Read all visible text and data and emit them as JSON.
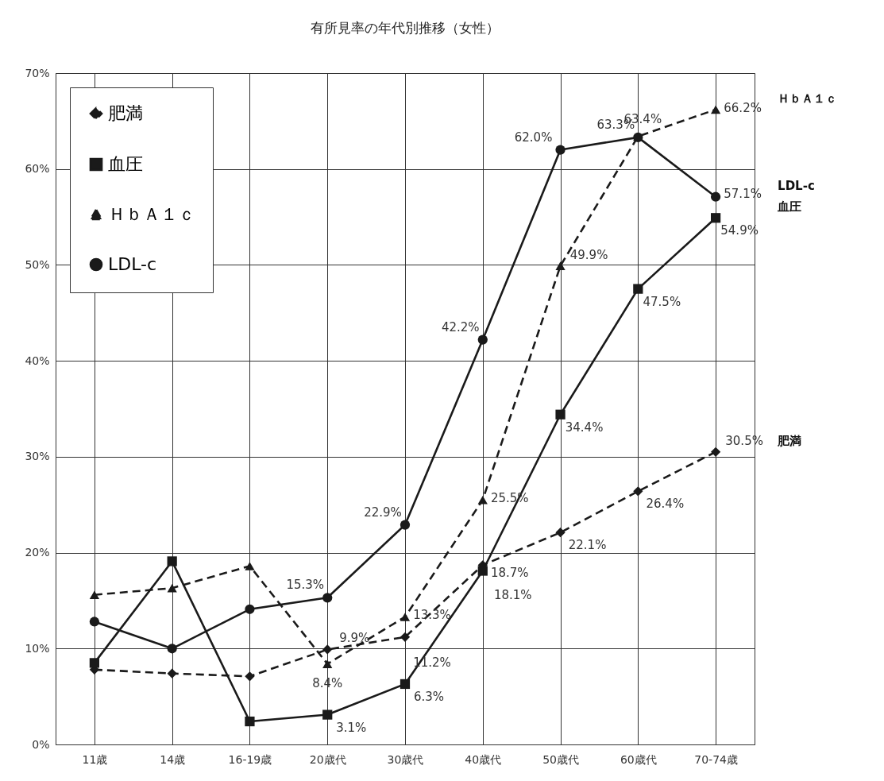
{
  "chart_data": {
    "type": "line",
    "title": "有所見率の年代別推移（女性）",
    "categories": [
      "11歳",
      "14歳",
      "16-19歳",
      "20歳代",
      "30歳代",
      "40歳代",
      "50歳代",
      "60歳代",
      "70-74歳"
    ],
    "ylim": [
      0,
      70
    ],
    "yticks": [
      {
        "value": 0,
        "label": "0%"
      },
      {
        "value": 10,
        "label": "10%"
      },
      {
        "value": 20,
        "label": "20%"
      },
      {
        "value": 30,
        "label": "30%"
      },
      {
        "value": 40,
        "label": "40%"
      },
      {
        "value": 50,
        "label": "50%"
      },
      {
        "value": 60,
        "label": "60%"
      },
      {
        "value": 70,
        "label": "70%"
      }
    ],
    "grid": true,
    "legend": "top left",
    "series": [
      {
        "name": "肥満",
        "color": "#1a1a1a",
        "marker": "diamond",
        "line_style": "dashed",
        "values": [
          7.8,
          7.4,
          7.1,
          9.9,
          11.2,
          18.7,
          22.1,
          26.4,
          30.5
        ],
        "value_labels": [
          null,
          null,
          null,
          "9.9%",
          "11.2%",
          "18.7%",
          "22.1%",
          "26.4%",
          "30.5%"
        ]
      },
      {
        "name": "血圧",
        "color": "#1a1a1a",
        "marker": "square",
        "line_style": "solid",
        "values": [
          8.5,
          19.1,
          2.4,
          3.1,
          6.3,
          18.1,
          34.4,
          47.5,
          54.9
        ],
        "value_labels": [
          null,
          null,
          null,
          "3.1%",
          "6.3%",
          "18.1%",
          "34.4%",
          "47.5%",
          "54.9%"
        ]
      },
      {
        "name": "ＨｂＡ１ｃ",
        "color": "#1a1a1a",
        "marker": "triangle",
        "line_style": "dashed",
        "values": [
          15.6,
          16.3,
          18.6,
          8.4,
          13.3,
          25.5,
          49.9,
          63.4,
          66.2
        ],
        "value_labels": [
          null,
          null,
          null,
          "8.4%",
          "13.3%",
          "25.5%",
          "49.9%",
          "63.4%",
          "66.2%"
        ]
      },
      {
        "name": "LDL-c",
        "color": "#1a1a1a",
        "marker": "circle",
        "line_style": "solid",
        "values": [
          12.8,
          10.0,
          14.1,
          15.3,
          22.9,
          42.2,
          62.0,
          63.3,
          57.1
        ],
        "value_labels": [
          null,
          null,
          null,
          "15.3%",
          "22.9%",
          "42.2%",
          "62.0%",
          "63.3%",
          "57.1%"
        ]
      }
    ]
  }
}
